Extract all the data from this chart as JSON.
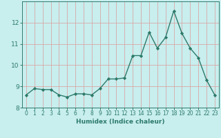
{
  "xlabel": "Humidex (Indice chaleur)",
  "x": [
    0,
    1,
    2,
    3,
    4,
    5,
    6,
    7,
    8,
    9,
    10,
    11,
    12,
    13,
    14,
    15,
    16,
    17,
    18,
    19,
    20,
    21,
    22,
    23
  ],
  "y": [
    8.6,
    8.9,
    8.85,
    8.85,
    8.6,
    8.5,
    8.65,
    8.65,
    8.6,
    8.9,
    9.35,
    9.35,
    9.4,
    10.45,
    10.45,
    11.55,
    10.8,
    11.3,
    12.55,
    11.5,
    10.8,
    10.35,
    9.3,
    8.6
  ],
  "line_color": "#2d7a6a",
  "marker": "D",
  "marker_size": 2.2,
  "bg_color": "#c8eeee",
  "grid_color": "#d8a8a8",
  "axis_color": "#2d7a6a",
  "tick_label_color": "#2d7a6a",
  "xlabel_color": "#2d7a6a",
  "ylim": [
    8.0,
    13.0
  ],
  "yticks": [
    8,
    9,
    10,
    11,
    12
  ],
  "xticks": [
    0,
    1,
    2,
    3,
    4,
    5,
    6,
    7,
    8,
    9,
    10,
    11,
    12,
    13,
    14,
    15,
    16,
    17,
    18,
    19,
    20,
    21,
    22,
    23
  ],
  "linewidth": 1.0
}
